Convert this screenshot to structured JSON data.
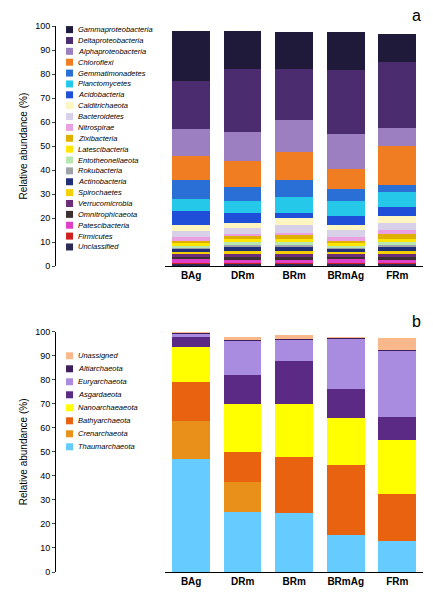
{
  "chart_data": [
    {
      "type": "bar",
      "stacked": true,
      "grid": false,
      "legend": "left",
      "annotations": [
        "a"
      ],
      "y_label": "Relative abundance (%)",
      "categories": [
        "BAg",
        "DRm",
        "BRm",
        "BRmAg",
        "FRm"
      ],
      "ylim": [
        0,
        100
      ],
      "yticks": [
        0,
        10,
        20,
        30,
        40,
        50,
        60,
        70,
        80,
        90,
        100
      ],
      "series": [
        {
          "name": "Gammaproteobacteria",
          "color": "#1f1a3a",
          "values": [
            21,
            16,
            15.5,
            16,
            11.5
          ]
        },
        {
          "name": "Deltaproteobacteria",
          "color": "#4b2c6e",
          "values": [
            20,
            26,
            21,
            26.5,
            27.5
          ]
        },
        {
          "name": "Alphaproteobacteria",
          "color": "#9b7fc0",
          "values": [
            11,
            12,
            13.5,
            14.5,
            7.5
          ]
        },
        {
          "name": "Chloroflexi",
          "color": "#f07d22",
          "values": [
            10,
            11,
            11.5,
            8.5,
            16
          ]
        },
        {
          "name": "Gemmatimonadetes",
          "color": "#2a6fd6",
          "values": [
            8,
            6,
            7,
            5,
            3
          ]
        },
        {
          "name": "Planctomycetes",
          "color": "#25c8e8",
          "values": [
            5,
            5,
            7,
            6,
            6.5
          ]
        },
        {
          "name": "Acidobacteria",
          "color": "#1f4fd8",
          "values": [
            6,
            4,
            2,
            4,
            3.5
          ]
        },
        {
          "name": "Calditrichaeota",
          "color": "#fff5c0",
          "values": [
            2.5,
            2,
            3,
            2,
            3
          ]
        },
        {
          "name": "Bacteroidetes",
          "color": "#d8d0e8",
          "values": [
            2.5,
            2.5,
            3,
            3,
            3
          ]
        },
        {
          "name": "Nitrospirae",
          "color": "#e8a0e0",
          "values": [
            1.5,
            1,
            1,
            1.5,
            1.5
          ]
        },
        {
          "name": "Zixibacteria",
          "color": "#e0b000",
          "values": [
            1,
            1,
            1.5,
            1,
            2
          ]
        },
        {
          "name": "Latescibacteria",
          "color": "#ffe600",
          "values": [
            1,
            1.5,
            1.5,
            1,
            1.5
          ]
        },
        {
          "name": "Entotheonellaeota",
          "color": "#b8e6b0",
          "values": [
            0.8,
            1,
            1,
            1,
            1
          ]
        },
        {
          "name": "Rokubacteria",
          "color": "#9fa3a8",
          "values": [
            0.7,
            1,
            1,
            0.5,
            1
          ]
        },
        {
          "name": "Actinobacteria",
          "color": "#1f2f7a",
          "values": [
            1,
            1.5,
            1.5,
            1,
            1.5
          ]
        },
        {
          "name": "Spirochaetes",
          "color": "#f5d000",
          "values": [
            1,
            1.5,
            1.5,
            1,
            1.5
          ]
        },
        {
          "name": "Verrucomicrobia",
          "color": "#6b2c7a",
          "values": [
            1,
            1,
            1,
            1,
            1
          ]
        },
        {
          "name": "Omnitrophicaeota",
          "color": "#3b2f2f",
          "values": [
            1,
            1.5,
            1.5,
            1,
            1.5
          ]
        },
        {
          "name": "Patescibacteria",
          "color": "#e040c8",
          "values": [
            1.5,
            1,
            1,
            1.5,
            1
          ]
        },
        {
          "name": "Firmicutes",
          "color": "#d02020",
          "values": [
            0.5,
            0.5,
            0.5,
            0.5,
            0.5
          ]
        },
        {
          "name": "Unclassified",
          "color": "#2b2b55",
          "values": [
            1,
            1,
            1,
            1,
            1
          ]
        }
      ]
    },
    {
      "type": "bar",
      "stacked": true,
      "grid": false,
      "legend": "left",
      "annotations": [
        "b"
      ],
      "y_label": "Relative abundance (%)",
      "categories": [
        "BAg",
        "DRm",
        "BRm",
        "BRmAg",
        "FRm"
      ],
      "ylim": [
        0,
        100
      ],
      "yticks": [
        0,
        10,
        20,
        30,
        40,
        50,
        60,
        70,
        80,
        90,
        100
      ],
      "series": [
        {
          "name": "Unassigned",
          "color": "#f8b88b",
          "values": [
            0.5,
            1.5,
            1.5,
            0.5,
            5
          ]
        },
        {
          "name": "Altiarchaeota",
          "color": "#3d1f5e",
          "values": [
            0.5,
            0.5,
            0.5,
            0.5,
            0.5
          ]
        },
        {
          "name": "Euryarchaeota",
          "color": "#a98be0",
          "values": [
            1,
            14,
            8.5,
            21,
            27.5
          ]
        },
        {
          "name": "Asgardaeota",
          "color": "#5a2a84",
          "values": [
            4.5,
            12,
            18,
            12,
            9.5
          ]
        },
        {
          "name": "Nanoarchaeaeota",
          "color": "#ffff00",
          "values": [
            14.5,
            20,
            22,
            19.5,
            22.5
          ]
        },
        {
          "name": "Bathyarchaeota",
          "color": "#e8620f",
          "values": [
            16,
            12.5,
            23.5,
            29,
            19.5
          ]
        },
        {
          "name": "Crenarchaeota",
          "color": "#e8901a",
          "values": [
            16,
            12.5,
            0,
            0,
            0
          ]
        },
        {
          "name": "Thaumarchaeota",
          "color": "#66ccff",
          "values": [
            47,
            25,
            24.5,
            15.5,
            13
          ]
        }
      ]
    }
  ]
}
